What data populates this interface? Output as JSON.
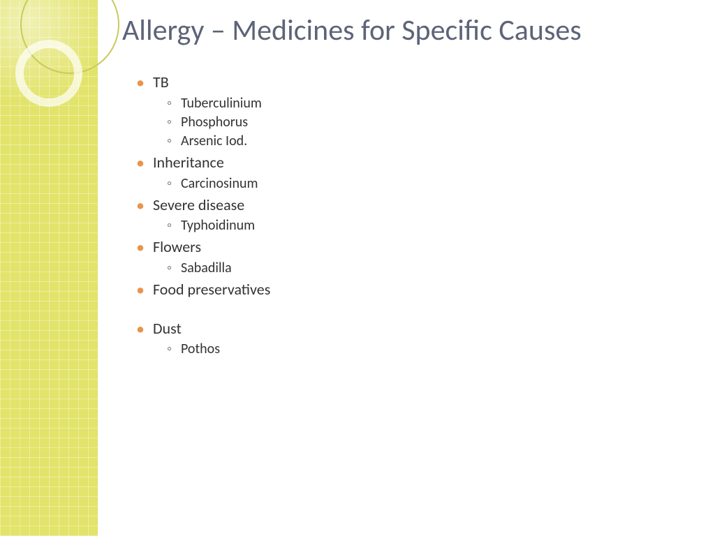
{
  "theme": {
    "sidebar_color": "#e2e36a",
    "title_color": "#5d6478",
    "bullet_color": "#e8954a",
    "sub_bullet_color": "#888888",
    "text_color": "#333333",
    "background": "#ffffff",
    "title_fontsize": 42,
    "body_fontsize": 22,
    "sub_fontsize": 20
  },
  "title": "Allergy – Medicines for Specific Causes",
  "items": [
    {
      "label": "TB",
      "children": [
        "Tuberculinium",
        "Phosphorus",
        "Arsenic Iod."
      ]
    },
    {
      "label": "Inheritance",
      "children": [
        "Carcinosinum"
      ]
    },
    {
      "label": "Severe disease",
      "children": [
        "Typhoidinum"
      ]
    },
    {
      "label": "Flowers",
      "children": [
        "Sabadilla"
      ]
    },
    {
      "label": "Food preservatives",
      "children": []
    },
    {
      "label": "Dust",
      "children": [
        "Pothos"
      ],
      "gap_before": true
    }
  ]
}
